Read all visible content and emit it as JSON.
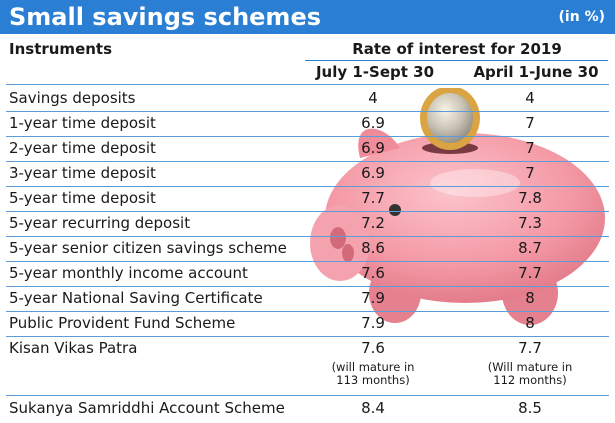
{
  "header": {
    "title": "Small savings schemes",
    "unit": "(in %)"
  },
  "table": {
    "col_instruments": "Instruments",
    "col_group": "Rate of interest for 2019",
    "col_period_1": "July 1-Sept 30",
    "col_period_2": "April 1-June 30",
    "rows": [
      {
        "name": "Savings deposits",
        "v1": "4",
        "v2": "4"
      },
      {
        "name": "1-year time deposit",
        "v1": "6.9",
        "v2": "7"
      },
      {
        "name": "2-year time deposit",
        "v1": "6.9",
        "v2": "7"
      },
      {
        "name": "3-year time deposit",
        "v1": "6.9",
        "v2": "7"
      },
      {
        "name": "5-year time deposit",
        "v1": "7.7",
        "v2": "7.8"
      },
      {
        "name": "5-year recurring deposit",
        "v1": "7.2",
        "v2": "7.3"
      },
      {
        "name": "5-year senior citizen savings scheme",
        "v1": "8.6",
        "v2": "8.7"
      },
      {
        "name": "5-year monthly income account",
        "v1": "7.6",
        "v2": "7.7"
      },
      {
        "name": "5-year National Saving Certificate",
        "v1": "7.9",
        "v2": "8"
      },
      {
        "name": "Public Provident Fund Scheme",
        "v1": "7.9",
        "v2": "8"
      },
      {
        "name": "Kisan Vikas Patra",
        "v1": "7.6",
        "v2": "7.7",
        "note1a": "(will mature in",
        "note1b": "113 months)",
        "note2a": "(Will mature in",
        "note2b": "112 months)"
      },
      {
        "name": "Sukanya Samriddhi Account Scheme",
        "v1": "8.4",
        "v2": "8.5"
      }
    ]
  },
  "colors": {
    "banner": "#2a7fd4",
    "rule": "#5b9bd8",
    "pig": "#f49aa6",
    "coin": "#d9a441"
  },
  "illustration": "piggy-bank-with-coin"
}
